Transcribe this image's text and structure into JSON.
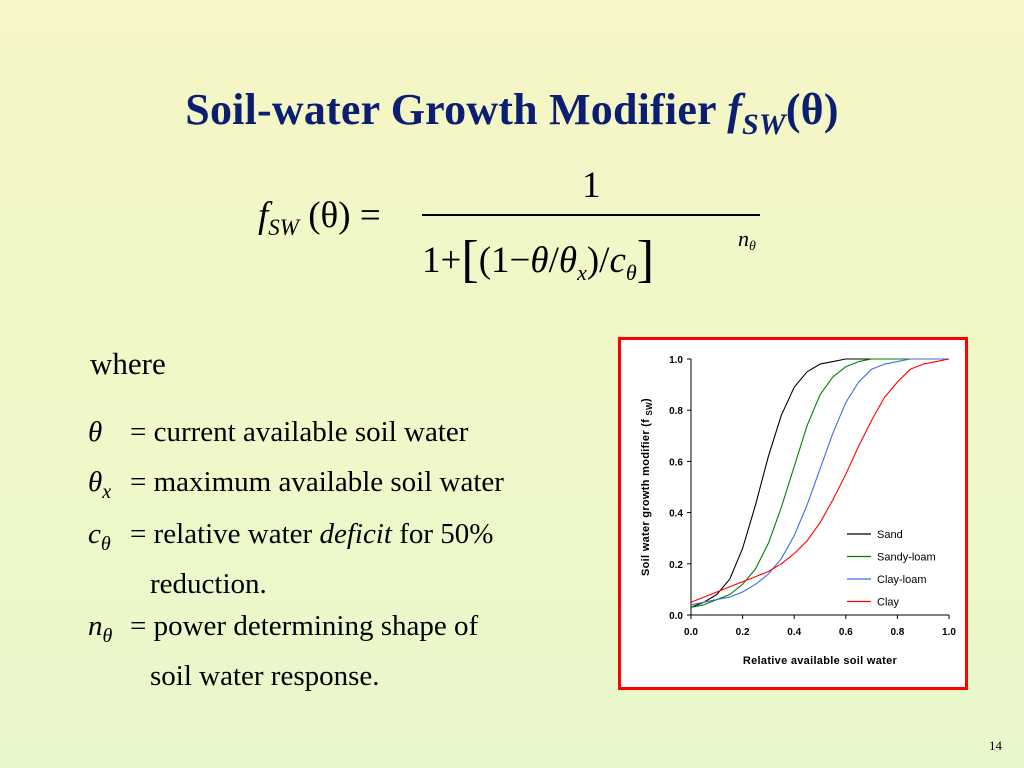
{
  "slide": {
    "title_text": "Soil-water Growth Modifier ",
    "title_f": "f",
    "title_sub": "SW",
    "title_arg": "(θ)",
    "page_number": "14"
  },
  "equation": {
    "lhs_f": "f",
    "lhs_sub": "SW",
    "lhs_arg": "(θ) =",
    "numerator": "1",
    "den_one_plus": "1+",
    "den_open_bracket": "[",
    "den_inner_open": "(1−",
    "den_theta": "θ",
    "den_slash1": "/",
    "den_theta_x": "θ",
    "den_x_sub": "x",
    "den_inner_close": ")",
    "den_slash2": "/",
    "den_c": "c",
    "den_c_sub": "θ",
    "den_close_bracket": "]",
    "exp_n": "n",
    "exp_sub": "θ"
  },
  "definitions": {
    "where": "where",
    "items": [
      {
        "symbol": "θ",
        "sub": "",
        "eq": "=",
        "text": "current available soil water",
        "cont": ""
      },
      {
        "symbol": "θ",
        "sub": "x",
        "eq": "=",
        "text": "maximum available soil water",
        "cont": ""
      },
      {
        "symbol": "c",
        "sub": "θ",
        "eq": "=",
        "text_pre": "relative water ",
        "text_em": "deficit",
        "text_post": " for 50%",
        "cont": "reduction."
      },
      {
        "symbol": "n",
        "sub": "θ",
        "eq": "=",
        "text": "power determining shape of",
        "cont": "soil water response."
      }
    ]
  },
  "chart_data": {
    "type": "line",
    "xlabel": "Relative available soil water",
    "ylabel_main": "Soil water growth modifier (f ",
    "ylabel_sub": "SW",
    "ylabel_close": ")",
    "xlim": [
      0,
      1
    ],
    "ylim": [
      0,
      1
    ],
    "x_ticks": [
      "0.0",
      "0.2",
      "0.4",
      "0.6",
      "0.8",
      "1.0"
    ],
    "y_ticks": [
      "0.0",
      "0.2",
      "0.4",
      "0.6",
      "0.8",
      "1.0"
    ],
    "legend_position": "bottom-right",
    "x": [
      0,
      0.05,
      0.1,
      0.15,
      0.2,
      0.25,
      0.3,
      0.35,
      0.4,
      0.45,
      0.5,
      0.55,
      0.6,
      0.65,
      0.7,
      0.75,
      0.8,
      0.85,
      0.9,
      0.95,
      1.0
    ],
    "series": [
      {
        "name": "Sand",
        "color": "#000000",
        "values": [
          0.03,
          0.05,
          0.08,
          0.14,
          0.26,
          0.43,
          0.62,
          0.78,
          0.89,
          0.95,
          0.98,
          0.99,
          1.0,
          1.0,
          1.0,
          1.0,
          1.0,
          1.0,
          1.0,
          1.0,
          1.0
        ]
      },
      {
        "name": "Sandy-loam",
        "color": "#008000",
        "values": [
          0.03,
          0.04,
          0.06,
          0.08,
          0.12,
          0.18,
          0.28,
          0.42,
          0.58,
          0.74,
          0.86,
          0.93,
          0.97,
          0.99,
          1.0,
          1.0,
          1.0,
          1.0,
          1.0,
          1.0,
          1.0
        ]
      },
      {
        "name": "Clay-loam",
        "color": "#3b6fe0",
        "values": [
          0.04,
          0.05,
          0.06,
          0.07,
          0.09,
          0.12,
          0.16,
          0.22,
          0.31,
          0.43,
          0.57,
          0.71,
          0.83,
          0.91,
          0.96,
          0.98,
          0.99,
          1.0,
          1.0,
          1.0,
          1.0
        ]
      },
      {
        "name": "Clay",
        "color": "#ff0000",
        "values": [
          0.05,
          0.07,
          0.09,
          0.11,
          0.13,
          0.15,
          0.17,
          0.2,
          0.24,
          0.29,
          0.36,
          0.45,
          0.55,
          0.66,
          0.76,
          0.85,
          0.91,
          0.96,
          0.98,
          0.99,
          1.0
        ]
      }
    ]
  }
}
